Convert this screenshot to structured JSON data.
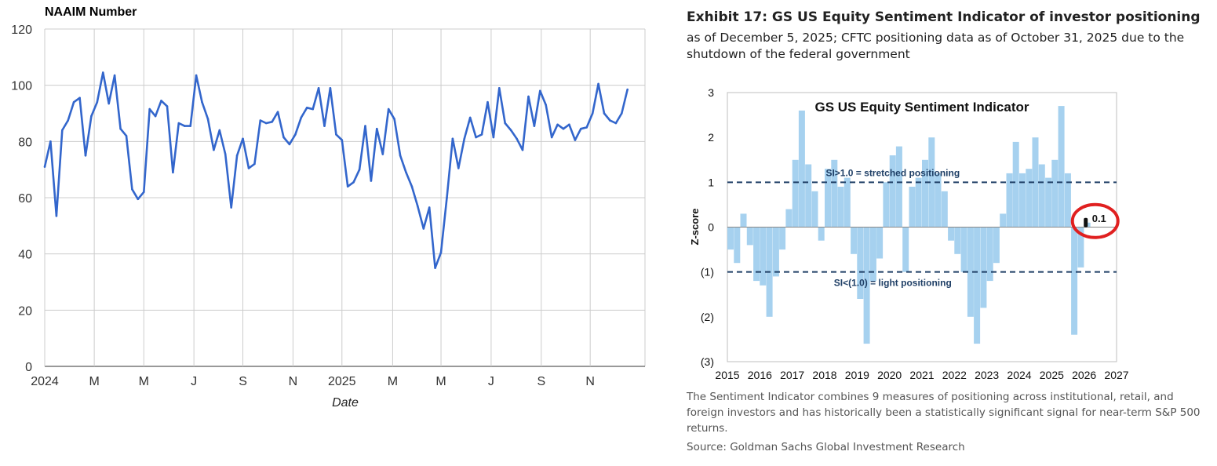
{
  "chart_data": [
    {
      "type": "line",
      "title": "NAAIM Number",
      "xlabel": "Date",
      "ylabel": "",
      "ylim": [
        0,
        120
      ],
      "yticks": [
        0,
        20,
        40,
        60,
        80,
        100,
        120
      ],
      "xlim": [
        0,
        103
      ],
      "xtick_labels": [
        "2024",
        "M",
        "M",
        "J",
        "S",
        "N",
        "2025",
        "M",
        "M",
        "J",
        "S",
        "N"
      ],
      "xtick_positions": [
        0,
        8.5,
        17,
        25.6,
        34,
        42.6,
        51,
        59.7,
        68,
        76.6,
        85.2,
        93.6
      ],
      "line_color": "#3366cc",
      "series": [
        {
          "name": "NAAIM Number",
          "values": [
            71,
            80,
            53.5,
            84,
            87.5,
            94,
            95.5,
            75,
            89,
            94,
            104.5,
            93.5,
            103.5,
            84.5,
            82,
            63,
            59.5,
            62,
            91.5,
            89,
            94.5,
            92.5,
            69,
            86.5,
            85.5,
            85.5,
            103.5,
            94,
            88,
            77,
            84,
            75.5,
            56.5,
            75,
            81,
            70.5,
            72,
            87.5,
            86.5,
            87,
            90.5,
            81.5,
            79,
            82.5,
            88.5,
            92,
            91.5,
            99,
            85.5,
            99,
            82.5,
            80.5,
            64,
            65.5,
            70,
            85.5,
            66,
            84.5,
            75.5,
            91.5,
            88,
            75,
            69,
            64,
            57,
            49,
            56.5,
            35,
            40.5,
            60,
            81,
            70.5,
            81,
            88.5,
            81.5,
            82.5,
            94,
            81.5,
            99,
            86.5,
            84,
            81,
            77,
            96,
            85.5,
            98,
            93,
            81.5,
            86,
            84.5,
            86,
            80.5,
            84.5,
            85,
            90,
            100.5,
            90,
            87.5,
            86.5,
            90,
            98.5
          ]
        }
      ]
    },
    {
      "type": "bar",
      "title": "GS US Equity  Sentiment Indicator",
      "xlabel": "",
      "ylabel": "Z-score",
      "ylim": [
        -3,
        3
      ],
      "ytick_values": [
        3,
        2,
        1,
        0,
        -1,
        -2,
        -3
      ],
      "ytick_labels": [
        "3",
        "2",
        "1",
        "0",
        "(1)",
        "(2)",
        "(3)"
      ],
      "xlim": [
        2015,
        2027
      ],
      "xtick_labels": [
        "2015",
        "2016",
        "2017",
        "2018",
        "2019",
        "2020",
        "2021",
        "2022",
        "2023",
        "2024",
        "2025",
        "2026",
        "2027"
      ],
      "bar_color": "#a6d1ef",
      "reference_lines": [
        {
          "value": 1,
          "label": "SI>1.0 = stretched positioning"
        },
        {
          "value": -1,
          "label": "SI<(1.0) = light positioning"
        }
      ],
      "latest_value": {
        "x": 2026.05,
        "y": 0.1,
        "label": "0.1"
      },
      "x": [
        2015.0,
        2015.2,
        2015.4,
        2015.6,
        2015.8,
        2016.0,
        2016.2,
        2016.4,
        2016.6,
        2016.8,
        2017.0,
        2017.2,
        2017.4,
        2017.6,
        2017.8,
        2018.0,
        2018.2,
        2018.4,
        2018.6,
        2018.8,
        2019.0,
        2019.2,
        2019.4,
        2019.6,
        2019.8,
        2020.0,
        2020.2,
        2020.4,
        2020.6,
        2020.8,
        2021.0,
        2021.2,
        2021.4,
        2021.6,
        2021.8,
        2022.0,
        2022.2,
        2022.4,
        2022.6,
        2022.8,
        2023.0,
        2023.2,
        2023.4,
        2023.6,
        2023.8,
        2024.0,
        2024.2,
        2024.4,
        2024.6,
        2024.8,
        2025.0,
        2025.2,
        2025.4,
        2025.6,
        2025.8,
        2026.0
      ],
      "values": [
        -0.5,
        -0.8,
        0.3,
        -0.4,
        -1.2,
        -1.3,
        -2.0,
        -1.1,
        -0.5,
        0.4,
        1.5,
        2.6,
        1.4,
        0.8,
        -0.3,
        1.3,
        1.5,
        0.9,
        1.1,
        -0.6,
        -1.6,
        -2.6,
        -1.2,
        -0.7,
        1.0,
        1.6,
        1.8,
        -1.0,
        0.9,
        1.1,
        1.5,
        2.0,
        1.2,
        0.8,
        -0.3,
        -0.6,
        -1.0,
        -2.0,
        -2.6,
        -1.8,
        -1.2,
        -0.8,
        0.3,
        1.2,
        1.9,
        1.2,
        1.3,
        2.0,
        1.4,
        1.1,
        1.5,
        2.7,
        1.2,
        -2.4,
        -0.9,
        0.1
      ]
    }
  ],
  "exhibit": {
    "title": "Exhibit 17: GS US Equity Sentiment Indicator of investor positioning",
    "subtitle": "as of December 5, 2025; CFTC positioning data as of October 31, 2025 due to the shutdown of the federal government",
    "note": "The Sentiment Indicator combines 9 measures of positioning across institutional, retail, and foreign investors and has historically been a statistically significant signal for near-term S&P 500 returns.",
    "source": "Source: Goldman Sachs Global Investment Research"
  },
  "colors": {
    "naaim_line": "#3366cc",
    "grid": "#cccccc",
    "bar_fill": "#a6d1ef",
    "dashed_ref": "#1f3f66",
    "highlight_circle": "#e02020",
    "text_dark": "#222222"
  }
}
